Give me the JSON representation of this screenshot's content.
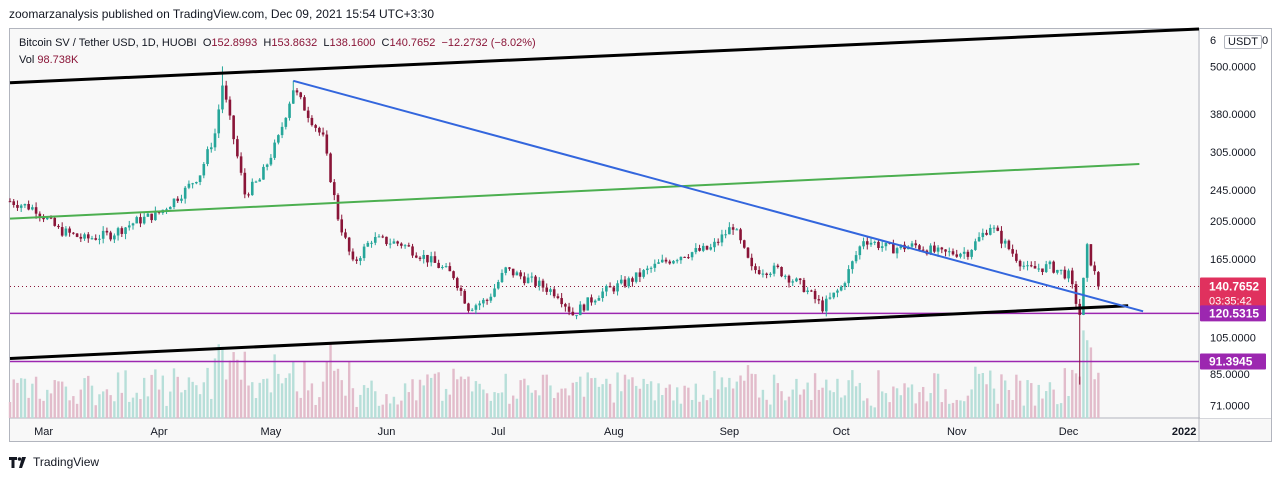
{
  "header": {
    "publisher_line": "zoomarzanalysis published on TradingView.com, Dec 09, 2021 15:54 UTC+3:30"
  },
  "legend": {
    "symbol": "Bitcoin SV / Tether USD, 1D, HUOBI",
    "open_label": "O",
    "open": "152.8993",
    "high_label": "H",
    "high": "153.8632",
    "low_label": "L",
    "low": "138.1600",
    "close_label": "C",
    "close": "140.7652",
    "change": "−12.2732 (−8.02%)",
    "vol_label": "Vol",
    "vol": "98.738K"
  },
  "price_scale": {
    "unit": "USDT",
    "unit_prefix": "6",
    "unit_suffix": "0",
    "ticks": [
      "500.0000",
      "380.0000",
      "305.0000",
      "245.0000",
      "205.0000",
      "165.0000",
      "105.0000",
      "85.0000",
      "71.0000"
    ],
    "last_price": "140.7652",
    "countdown": "03:35:42",
    "level_upper": "120.5315",
    "level_lower": "91.3945"
  },
  "time_scale": {
    "ticks": [
      "Mar",
      "Apr",
      "May",
      "Jun",
      "Jul",
      "Aug",
      "Sep",
      "Oct",
      "Nov",
      "Dec",
      "2022"
    ]
  },
  "footer": {
    "brand": "TradingView"
  },
  "colors": {
    "up": "#26a69a",
    "down": "#8a1538",
    "blue_line": "#3366dd",
    "green_line": "#4caf50",
    "purple": "#9c27b0",
    "black": "#000000"
  },
  "chart_data": {
    "type": "candlestick",
    "title": "Bitcoin SV / Tether USD, 1D, HUOBI",
    "y_scale": "log",
    "ylim": [
      66,
      620
    ],
    "x_range": [
      "2021-02-20",
      "2022-01-05"
    ],
    "close_series": [
      [
        "2021-02-20",
        230
      ],
      [
        "2021-02-27",
        220
      ],
      [
        "2021-03-05",
        195
      ],
      [
        "2021-03-12",
        185
      ],
      [
        "2021-03-19",
        190
      ],
      [
        "2021-03-26",
        205
      ],
      [
        "2021-04-01",
        215
      ],
      [
        "2021-04-08",
        245
      ],
      [
        "2021-04-12",
        270
      ],
      [
        "2021-04-16",
        340
      ],
      [
        "2021-04-18",
        450
      ],
      [
        "2021-04-21",
        330
      ],
      [
        "2021-04-24",
        240
      ],
      [
        "2021-04-28",
        260
      ],
      [
        "2021-05-03",
        330
      ],
      [
        "2021-05-07",
        440
      ],
      [
        "2021-05-11",
        380
      ],
      [
        "2021-05-15",
        330
      ],
      [
        "2021-05-19",
        210
      ],
      [
        "2021-05-23",
        160
      ],
      [
        "2021-05-28",
        185
      ],
      [
        "2021-06-05",
        180
      ],
      [
        "2021-06-12",
        165
      ],
      [
        "2021-06-19",
        150
      ],
      [
        "2021-06-23",
        125
      ],
      [
        "2021-06-28",
        130
      ],
      [
        "2021-07-03",
        155
      ],
      [
        "2021-07-10",
        145
      ],
      [
        "2021-07-17",
        135
      ],
      [
        "2021-07-21",
        120
      ],
      [
        "2021-07-28",
        135
      ],
      [
        "2021-08-05",
        145
      ],
      [
        "2021-08-13",
        160
      ],
      [
        "2021-08-20",
        170
      ],
      [
        "2021-08-27",
        175
      ],
      [
        "2021-09-02",
        200
      ],
      [
        "2021-09-07",
        155
      ],
      [
        "2021-09-14",
        155
      ],
      [
        "2021-09-21",
        140
      ],
      [
        "2021-09-26",
        125
      ],
      [
        "2021-10-01",
        140
      ],
      [
        "2021-10-07",
        185
      ],
      [
        "2021-10-14",
        175
      ],
      [
        "2021-10-21",
        178
      ],
      [
        "2021-10-28",
        170
      ],
      [
        "2021-11-04",
        172
      ],
      [
        "2021-11-10",
        200
      ],
      [
        "2021-11-15",
        175
      ],
      [
        "2021-11-20",
        155
      ],
      [
        "2021-11-26",
        158
      ],
      [
        "2021-12-01",
        150
      ],
      [
        "2021-12-04",
        120
      ],
      [
        "2021-12-06",
        175
      ],
      [
        "2021-12-09",
        140.7652
      ]
    ],
    "spikes": [
      {
        "date": "2021-12-04",
        "low": 80
      },
      {
        "date": "2021-04-18",
        "high": 500
      },
      {
        "date": "2021-05-07",
        "high": 460
      }
    ],
    "trendlines": [
      {
        "name": "upper channel",
        "color": "#000000",
        "from": [
          "2021-02-20",
          455
        ],
        "to": [
          "2022-01-05",
          620
        ]
      },
      {
        "name": "lower channel",
        "color": "#000000",
        "from": [
          "2021-02-20",
          93
        ],
        "to": [
          "2021-12-17",
          126
        ]
      },
      {
        "name": "green line",
        "color": "#4caf50",
        "from": [
          "2021-02-20",
          208
        ],
        "to": [
          "2021-12-20",
          285
        ]
      },
      {
        "name": "blue line",
        "color": "#3366dd",
        "from": [
          "2021-05-07",
          460
        ],
        "to": [
          "2021-12-21",
          122
        ]
      }
    ],
    "horizontal_levels": [
      120.5315,
      91.3945
    ],
    "last_price": 140.7652
  }
}
